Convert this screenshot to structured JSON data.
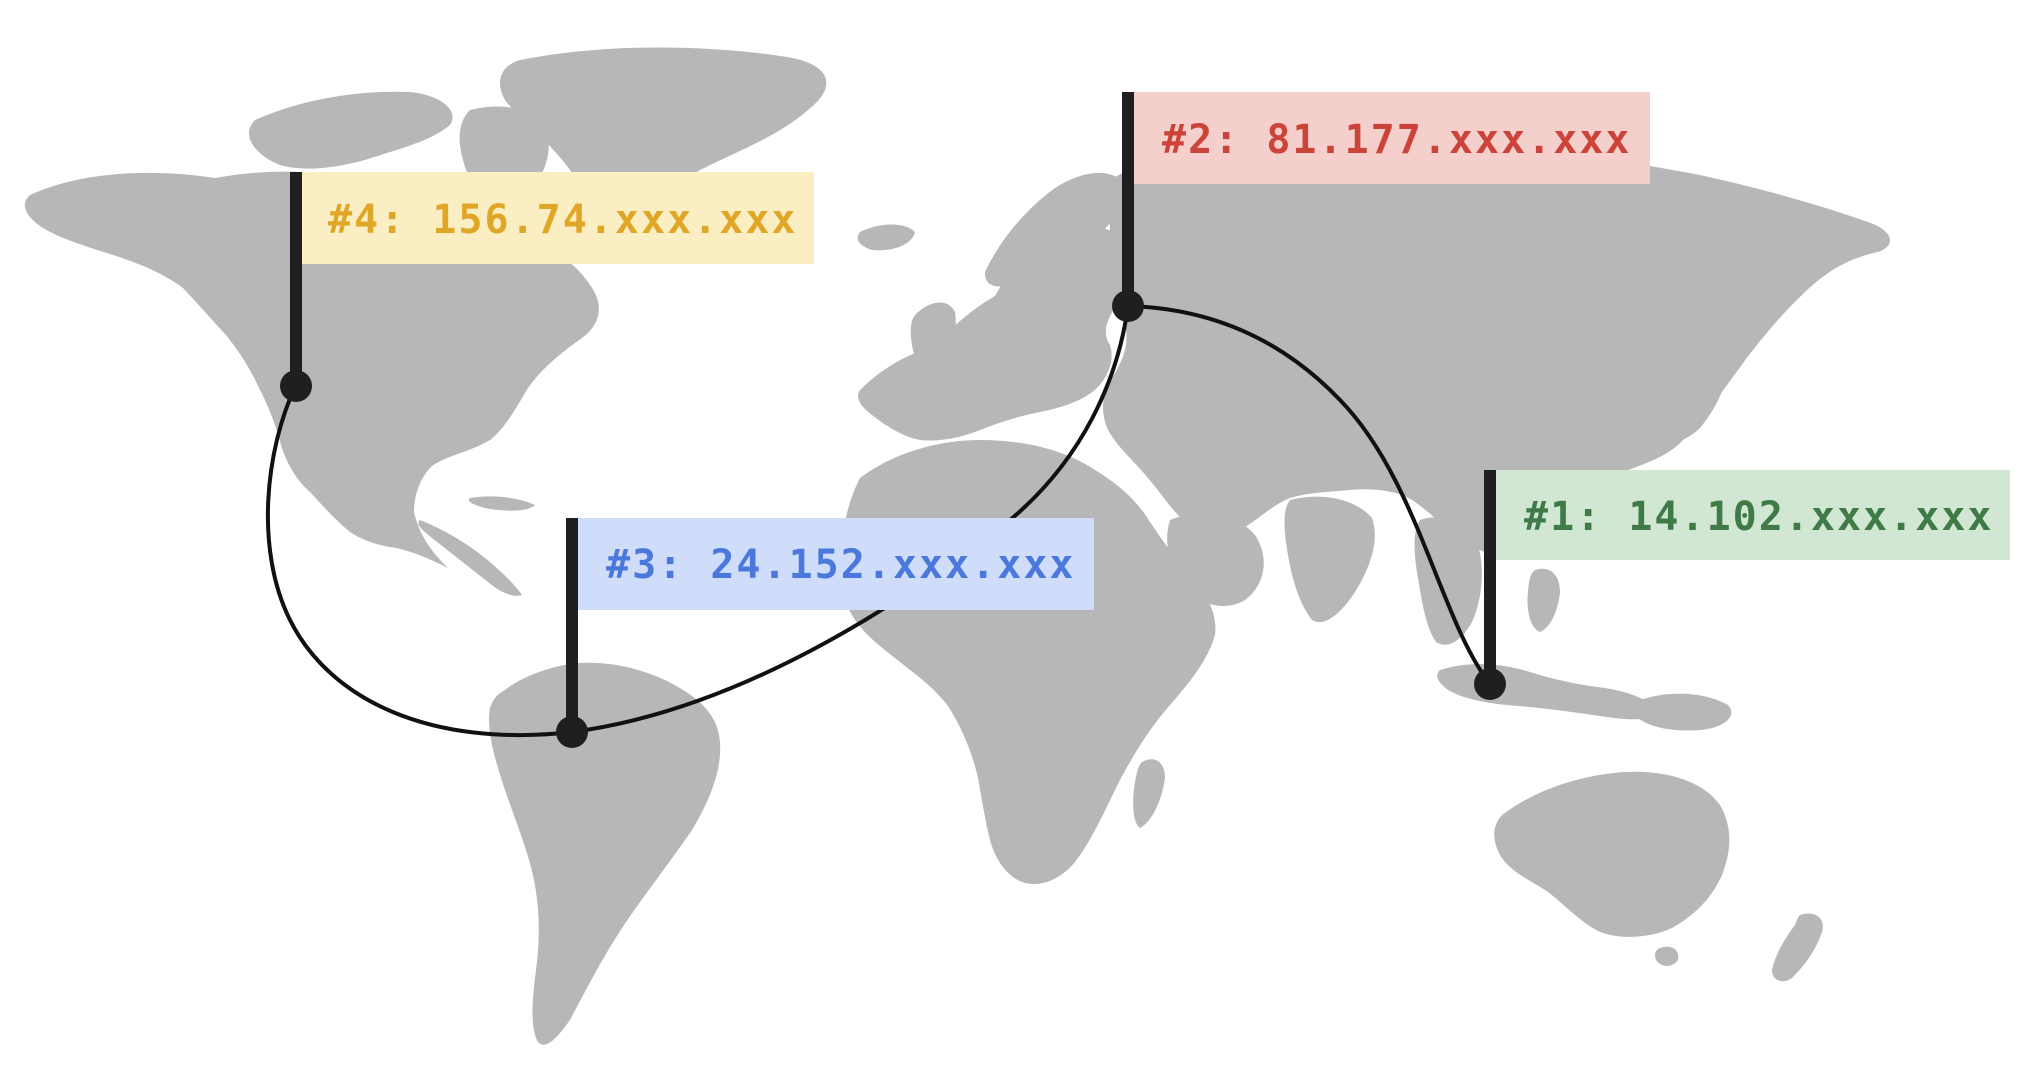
{
  "map": {
    "markers": [
      {
        "id": "marker-1",
        "label": "#1: 14.102.xxx.xxx",
        "text_color": "#3e7b47",
        "fill_color": "#d1e6d3"
      },
      {
        "id": "marker-2",
        "label": "#2: 81.177.xxx.xxx",
        "text_color": "#cc4339",
        "fill_color": "#f4cfcc"
      },
      {
        "id": "marker-3",
        "label": "#3: 24.152.xxx.xxx",
        "text_color": "#4a78dc",
        "fill_color": "#cfddfa"
      },
      {
        "id": "marker-4",
        "label": "#4: 156.74.xxx.xxx",
        "text_color": "#e0a625",
        "fill_color": "#fbeec3"
      }
    ],
    "colors": {
      "land": "#b7b7b7",
      "route": "#111111",
      "pole": "#1f1f1f",
      "background": "#ffffff"
    }
  }
}
